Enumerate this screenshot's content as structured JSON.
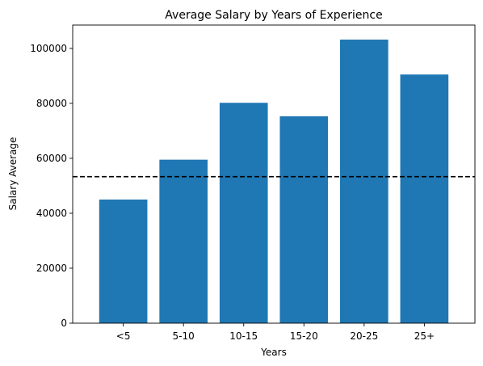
{
  "chart_data": {
    "type": "bar",
    "title": "Average Salary by Years of Experience",
    "xlabel": "Years",
    "ylabel": "Salary Average",
    "categories": [
      "<5",
      "5-10",
      "10-15",
      "15-20",
      "20-25",
      "25+"
    ],
    "values": [
      45000,
      59500,
      80200,
      75300,
      103200,
      90500
    ],
    "ylim": [
      0,
      108500
    ],
    "yticks": [
      0,
      20000,
      40000,
      60000,
      80000,
      100000
    ],
    "ytick_labels": [
      "0",
      "20000",
      "40000",
      "60000",
      "80000",
      "100000"
    ],
    "reference_line": {
      "value": 53300,
      "style": "dashed",
      "color": "#000000"
    },
    "bar_color": "#1f77b4",
    "grid": false
  }
}
